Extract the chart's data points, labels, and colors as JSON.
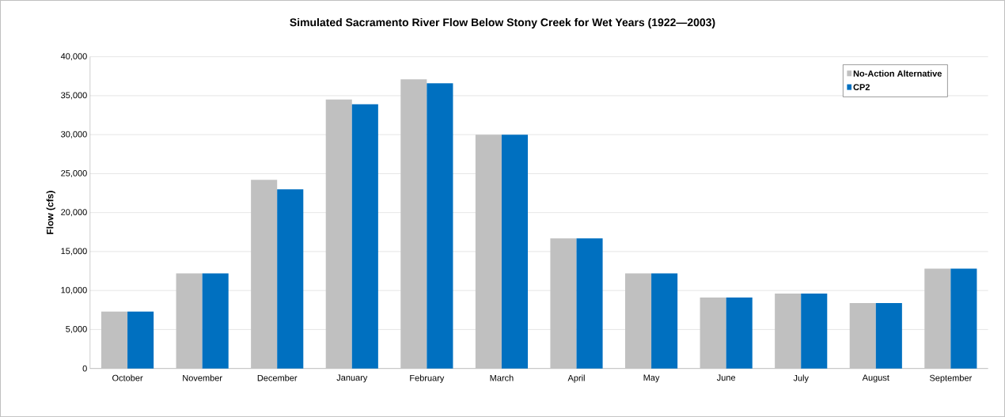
{
  "chart_data": {
    "type": "bar",
    "title": "Simulated Sacramento River Flow Below Stony Creek for Wet Years (1922—2003)",
    "ylabel": "Flow (cfs)",
    "categories": [
      "October",
      "November",
      "December",
      "January",
      "February",
      "March",
      "April",
      "May",
      "June",
      "July",
      "August",
      "September"
    ],
    "series": [
      {
        "name": "No-Action Alternative",
        "color": "#c0c0c0",
        "values": [
          7300,
          12200,
          24200,
          34500,
          37100,
          30000,
          16700,
          12200,
          9100,
          9600,
          8400,
          12800
        ]
      },
      {
        "name": "CP2",
        "color": "#0070c0",
        "values": [
          7300,
          12200,
          23000,
          33900,
          36600,
          30000,
          16700,
          12200,
          9100,
          9600,
          8400,
          12800
        ]
      }
    ],
    "ylim": [
      0,
      40000
    ],
    "yticks": [
      {
        "value": 0,
        "label": "0"
      },
      {
        "value": 5000,
        "label": "5,000"
      },
      {
        "value": 10000,
        "label": "10,000"
      },
      {
        "value": 15000,
        "label": "15,000"
      },
      {
        "value": 20000,
        "label": "20,000"
      },
      {
        "value": 25000,
        "label": "25,000"
      },
      {
        "value": 30000,
        "label": "30,000"
      },
      {
        "value": 35000,
        "label": "35,000"
      },
      {
        "value": 40000,
        "label": "40,000"
      }
    ],
    "grid": "y",
    "legend": "top right"
  }
}
